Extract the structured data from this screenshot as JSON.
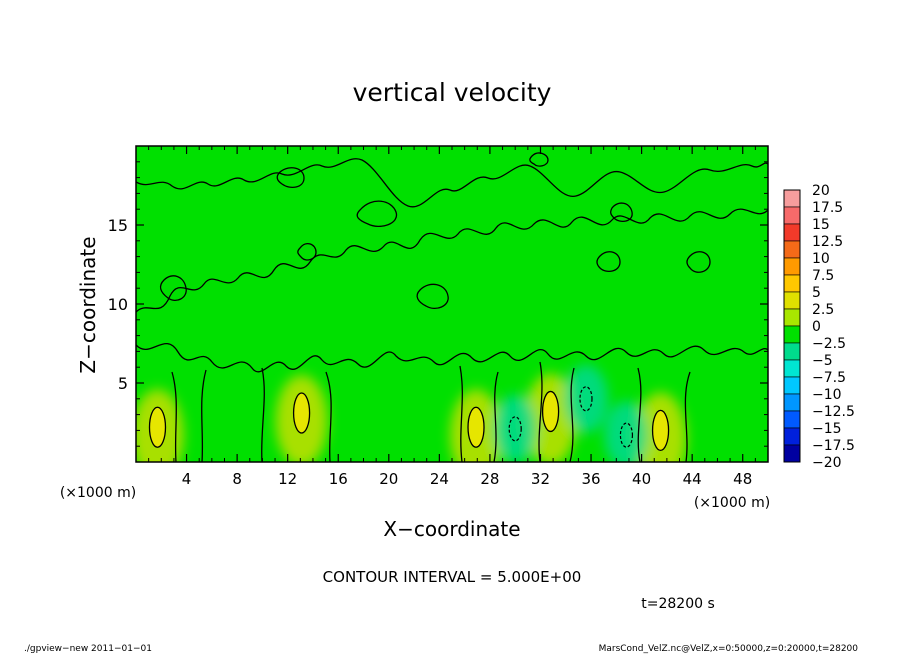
{
  "chart_data": {
    "type": "heatmap",
    "title": "vertical velocity",
    "xlabel": "X−coordinate",
    "ylabel": "Z−coordinate",
    "x_unit": "(×1000 m)",
    "y_unit": "(×1000 m)",
    "xlim": [
      0,
      50
    ],
    "ylim": [
      0,
      20
    ],
    "x_ticks": [
      4,
      8,
      12,
      16,
      20,
      24,
      28,
      32,
      36,
      40,
      44,
      48
    ],
    "y_ticks": [
      5,
      10,
      15
    ],
    "x_tick_labels": [
      "4",
      "8",
      "12",
      "16",
      "20",
      "24",
      "28",
      "32",
      "36",
      "40",
      "44",
      "48"
    ],
    "y_tick_labels": [
      "5",
      "10",
      "15"
    ],
    "colorbar": {
      "levels": [
        20,
        17.5,
        15,
        12.5,
        10,
        7.5,
        5,
        2.5,
        0,
        -2.5,
        -5,
        -7.5,
        -10,
        -12.5,
        -15,
        -17.5,
        -20
      ],
      "labels": [
        "20",
        "17.5",
        "15",
        "12.5",
        "10",
        "7.5",
        "5",
        "2.5",
        "0",
        "−2.5",
        "−5",
        "−7.5",
        "−10",
        "−12.5",
        "−15",
        "−17.5",
        "−20"
      ],
      "colors": [
        "#f79d9d",
        "#f76a6a",
        "#f23a2a",
        "#f46a18",
        "#ff9a00",
        "#ffc800",
        "#e0e000",
        "#a8e600",
        "#00e000",
        "#00dc8c",
        "#00e6d2",
        "#00c8ff",
        "#0096ff",
        "#005aff",
        "#0020dc",
        "#0000a0",
        "#5a00b4"
      ]
    },
    "background_value": 0,
    "updraft_cores": [
      {
        "x": 1.7,
        "z": 2.2,
        "w": 5
      },
      {
        "x": 13.1,
        "z": 3.1,
        "w": 5
      },
      {
        "x": 26.9,
        "z": 2.2,
        "w": 5
      },
      {
        "x": 32.8,
        "z": 3.2,
        "w": 5
      },
      {
        "x": 41.5,
        "z": 2.0,
        "w": 5
      }
    ],
    "downdraft_cores": [
      {
        "x": 30.0,
        "z": 2.1,
        "w": -5
      },
      {
        "x": 35.6,
        "z": 4.0,
        "w": -5
      },
      {
        "x": 38.8,
        "z": 1.7,
        "w": -5
      }
    ],
    "contour_interval_label": "CONTOUR INTERVAL = 5.000E+00",
    "time_label": "t=28200 s"
  },
  "footer": {
    "program": "./gpview−new   2011−01−01",
    "source": "MarsCond_VelZ.nc@VelZ,x=0:50000,z=0:20000,t=28200"
  },
  "colors": {
    "field_base": "#00e000",
    "updraft_fill": "#e0e000",
    "downdraft_fill": "#00d8b0",
    "contour": "#000000"
  }
}
